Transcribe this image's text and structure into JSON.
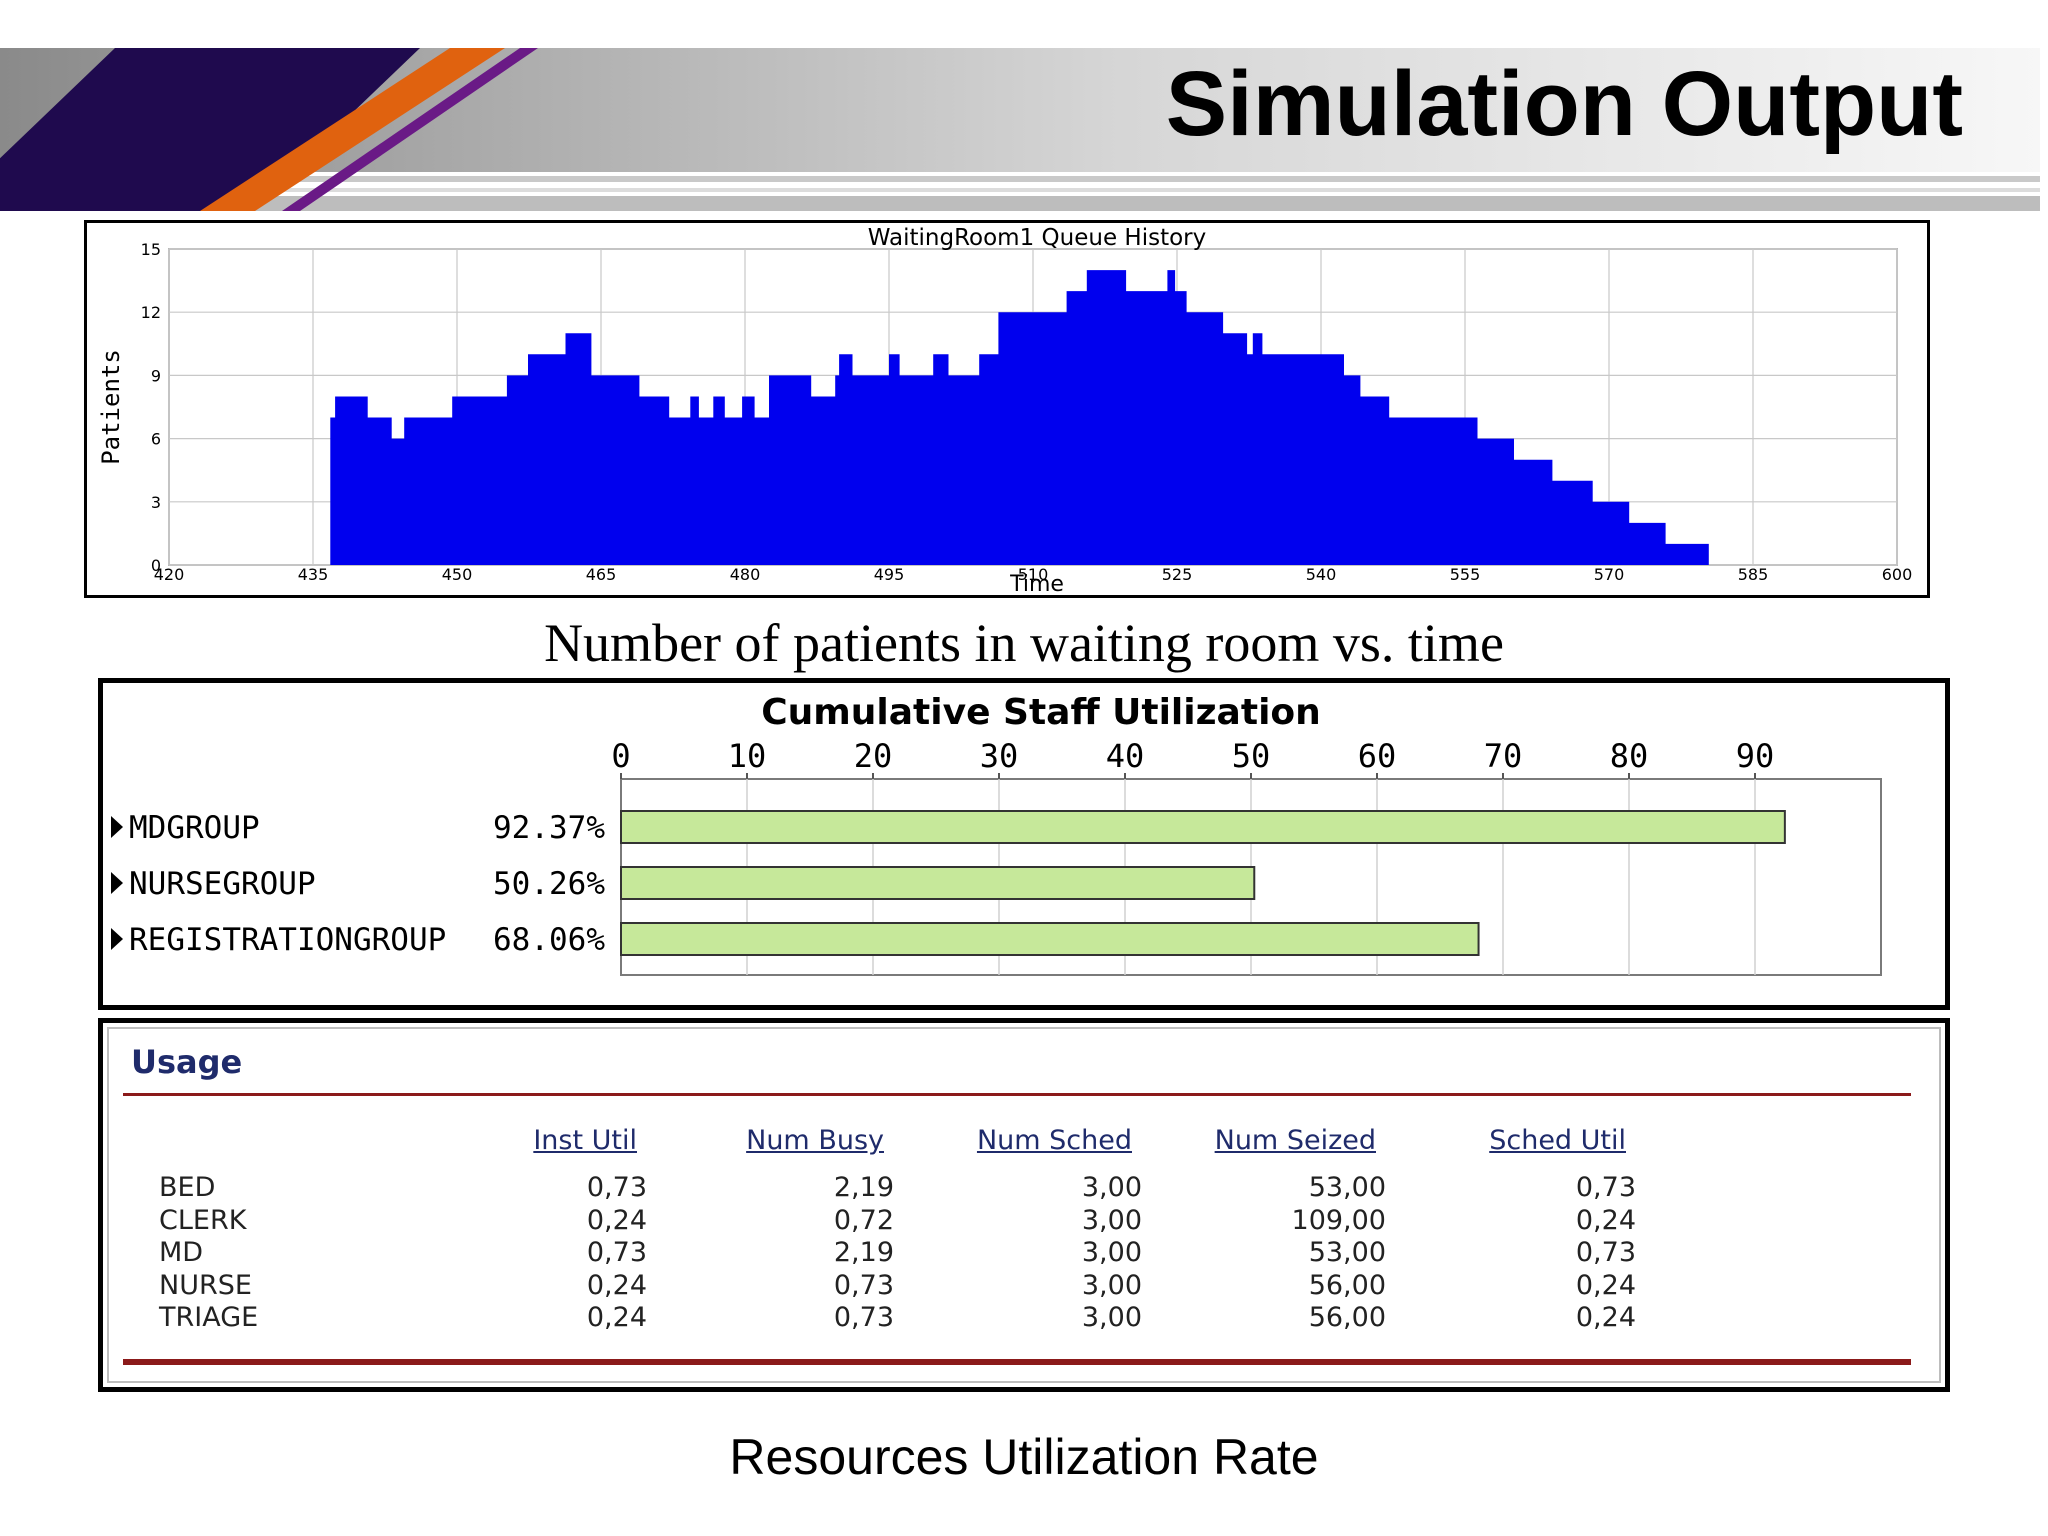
{
  "slide": {
    "title": "Simulation Output"
  },
  "captions": {
    "queue": "Number of patients in waiting room vs. time",
    "utilization": "Resources Utilization Rate"
  },
  "chart_data": [
    {
      "type": "area",
      "title": "WaitingRoom1 Queue History",
      "xlabel": "Time",
      "ylabel": "Patients",
      "xlim": [
        420,
        600
      ],
      "ylim": [
        0,
        15
      ],
      "x_ticks": [
        420,
        435,
        450,
        465,
        480,
        495,
        510,
        525,
        540,
        555,
        570,
        585,
        600
      ],
      "y_ticks": [
        0,
        3,
        6,
        9,
        12,
        15
      ],
      "grid": true,
      "color": "#0000ee",
      "step": [
        [
          436.8,
          7
        ],
        [
          437.3,
          8
        ],
        [
          440.7,
          7
        ],
        [
          443.2,
          6
        ],
        [
          444.5,
          7
        ],
        [
          449.5,
          8
        ],
        [
          455.2,
          9
        ],
        [
          457.4,
          10
        ],
        [
          461.3,
          11
        ],
        [
          464.0,
          9
        ],
        [
          469.0,
          8
        ],
        [
          472.1,
          7
        ],
        [
          474.3,
          8
        ],
        [
          475.2,
          7
        ],
        [
          476.7,
          8
        ],
        [
          477.9,
          7
        ],
        [
          479.7,
          8
        ],
        [
          481.0,
          7
        ],
        [
          482.5,
          9
        ],
        [
          486.9,
          8
        ],
        [
          489.4,
          9
        ],
        [
          489.8,
          10
        ],
        [
          491.2,
          9
        ],
        [
          495.0,
          10
        ],
        [
          496.1,
          9
        ],
        [
          499.6,
          10
        ],
        [
          501.2,
          9
        ],
        [
          504.4,
          10
        ],
        [
          506.4,
          12
        ],
        [
          513.5,
          13
        ],
        [
          515.6,
          14
        ],
        [
          519.7,
          13
        ],
        [
          524.0,
          14
        ],
        [
          524.8,
          13
        ],
        [
          526.0,
          12
        ],
        [
          529.8,
          11
        ],
        [
          532.3,
          10
        ],
        [
          532.9,
          11
        ],
        [
          533.9,
          10
        ],
        [
          542.4,
          9
        ],
        [
          544.1,
          8
        ],
        [
          547.1,
          7
        ],
        [
          556.3,
          6
        ],
        [
          560.1,
          5
        ],
        [
          564.1,
          4
        ],
        [
          568.3,
          3
        ],
        [
          572.1,
          2
        ],
        [
          575.9,
          1
        ],
        [
          580.4,
          0
        ]
      ],
      "end_x": 580.4
    },
    {
      "type": "bar",
      "title": "Cumulative Staff Utilization",
      "orientation": "horizontal",
      "categories": [
        "MDGROUP",
        "NURSEGROUP",
        "REGISTRATIONGROUP"
      ],
      "value_labels": [
        "92.37%",
        "50.26%",
        "68.06%"
      ],
      "values": [
        92.37,
        50.26,
        68.06
      ],
      "xlim": [
        0,
        100
      ],
      "x_ticks": [
        0,
        10,
        20,
        30,
        40,
        50,
        60,
        70,
        80,
        90
      ],
      "bar_color": "#c6e89a",
      "grid": true
    }
  ],
  "usage": {
    "title": "Usage",
    "columns": [
      "Inst Util",
      "Num Busy",
      "Num Sched",
      "Num Seized",
      "Sched Util"
    ],
    "rows": [
      {
        "name": "BED",
        "values": [
          "0,73",
          "2,19",
          "3,00",
          "53,00",
          "0,73"
        ]
      },
      {
        "name": "CLERK",
        "values": [
          "0,24",
          "0,72",
          "3,00",
          "109,00",
          "0,24"
        ]
      },
      {
        "name": "MD",
        "values": [
          "0,73",
          "2,19",
          "3,00",
          "53,00",
          "0,73"
        ]
      },
      {
        "name": "NURSE",
        "values": [
          "0,24",
          "0,73",
          "3,00",
          "56,00",
          "0,24"
        ]
      },
      {
        "name": "TRIAGE",
        "values": [
          "0,24",
          "0,73",
          "3,00",
          "56,00",
          "0,24"
        ]
      }
    ]
  }
}
